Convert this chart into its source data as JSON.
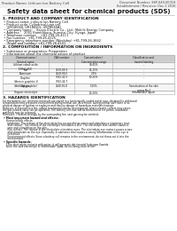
{
  "title": "Safety data sheet for chemical products (SDS)",
  "header_left": "Product Name: Lithium Ion Battery Cell",
  "header_right_1": "Document Number: 98P-049-00018",
  "header_right_2": "Establishment / Revision: Dec.1 2016",
  "section1_title": "1. PRODUCT AND COMPANY IDENTIFICATION",
  "section1_lines": [
    " • Product name: Lithium Ion Battery Cell",
    " • Product code: Cylindrical-type cell",
    "    (UR18650J, UR18650L, UR18650A)",
    " • Company name:    Sanyo Electric Co., Ltd., Mobile Energy Company",
    " • Address:    2001 Kamitokura, Sumoto-City, Hyogo, Japan",
    " • Telephone number:    +81-799-26-4111",
    " • Fax number:  +81-799-26-4125",
    " • Emergency telephone number (Weekday) +81-799-26-3662",
    "    (Night and holiday) +81-799-26-4101"
  ],
  "section2_title": "2. COMPOSITION / INFORMATION ON INGREDIENTS",
  "section2_sub1": " • Substance or preparation: Preparation",
  "section2_sub2": " • Information about the chemical nature of product",
  "table_col_headers": [
    "Chemical name /\nGeneral name",
    "CAS number",
    "Concentration /\nConcentration range",
    "Classification and\nhazard labeling"
  ],
  "table_rows": [
    [
      "Lithium cobalt oxide\n(LiMnCoO4)",
      "-",
      "30-45%",
      "-"
    ],
    [
      "Iron",
      "7439-89-6",
      "15-25%",
      "-"
    ],
    [
      "Aluminum",
      "7429-90-5",
      "2-5%",
      "-"
    ],
    [
      "Graphite\n(Area in graphite-1)\n(Artificial graphite)",
      "7782-42-5\n7782-44-7",
      "10-25%",
      "-"
    ],
    [
      "Copper",
      "7440-50-8",
      "5-15%",
      "Sensitization of the skin\ngroup No.2"
    ],
    [
      "Organic electrolyte",
      "-",
      "10-20%",
      "Inflammable liquid"
    ]
  ],
  "section3_title": "3. HAZARDS IDENTIFICATION",
  "section3_para1": [
    "For the battery cell, chemical materials are stored in a hermetically-sealed metal case, designed to withstand",
    "temperatures and pressures encountered during normal use. As a result, during normal use, there is no",
    "physical danger of ignition or explosion and thus no danger of hazardous materials leakage.",
    "However, if exposed to a fire, added mechanical shocks, decomposed, where electric current may cause,",
    "the gas release valve can be operated. The battery cell case will be breached at fire points, hazardous",
    "materials may be released.",
    "Moreover, if heated strongly by the surrounding fire, soot gas may be emitted."
  ],
  "section3_bullet1": " • Most important hazard and effects:",
  "section3_human": "  Human health effects:",
  "section3_health": [
    "    Inhalation: The release of the electrolyte has an anesthesia action and stimulates a respiratory tract.",
    "    Skin contact: The release of the electrolyte stimulates a skin. The electrolyte skin contact causes a",
    "    sore and stimulation on the skin.",
    "    Eye contact: The release of the electrolyte stimulates eyes. The electrolyte eye contact causes a sore",
    "    and stimulation on the eye. Especially, a substance that causes a strong inflammation of the eye is",
    "    contained.",
    "    Environmental effects: Since a battery cell remains in the environment, do not throw out it into the",
    "    environment."
  ],
  "section3_bullet2": " • Specific hazards:",
  "section3_specific": [
    "  If the electrolyte contacts with water, it will generate detrimental hydrogen fluoride.",
    "  Since the said electrolyte is inflammable liquid, do not bring close to fire."
  ],
  "bg_color": "#ffffff",
  "text_color": "#111111",
  "border_color": "#aaaaaa",
  "table_header_bg": "#cccccc",
  "header_bg": "#f0f0f0"
}
